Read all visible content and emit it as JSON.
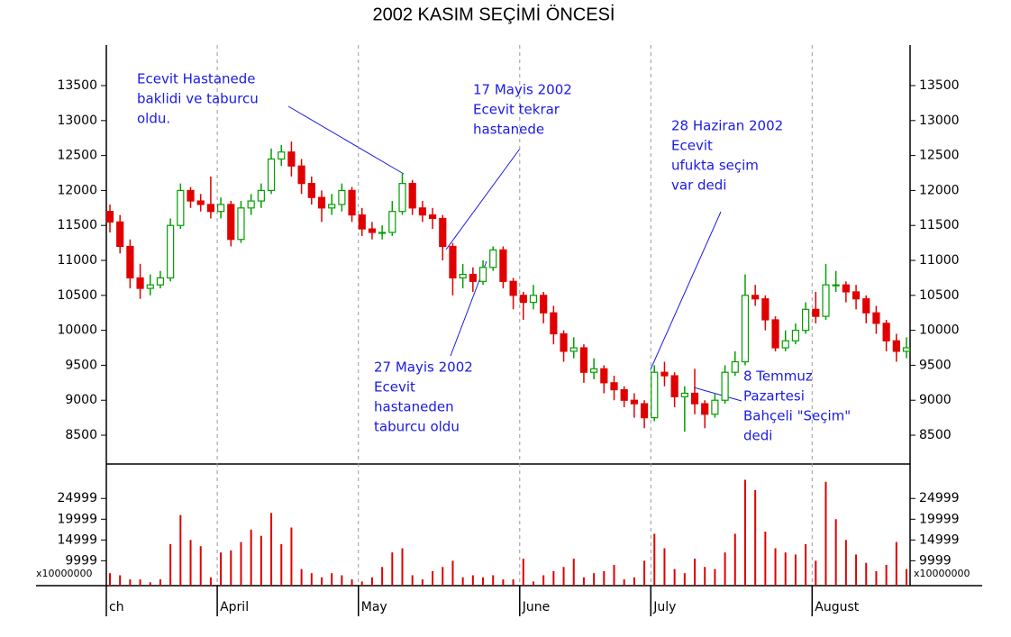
{
  "chart_data": {
    "type": "candlestick",
    "title": "2002 KASIM SEÇİMİ ÖNCESİ",
    "categories": [
      "ch",
      null,
      null,
      null,
      null,
      null,
      null,
      null,
      null,
      null,
      null,
      "April",
      null,
      null,
      null,
      null,
      null,
      null,
      null,
      null,
      null,
      null,
      null,
      null,
      null,
      "May",
      null,
      null,
      null,
      null,
      null,
      null,
      null,
      null,
      null,
      null,
      null,
      null,
      null,
      null,
      null,
      "June",
      null,
      null,
      null,
      null,
      null,
      null,
      null,
      null,
      null,
      null,
      null,
      null,
      "July",
      null,
      null,
      null,
      null,
      null,
      null,
      null,
      null,
      null,
      null,
      null,
      null,
      null,
      null,
      null,
      "August",
      null,
      null,
      null,
      null,
      null,
      null,
      null,
      null,
      null
    ],
    "open": [
      11700,
      11550,
      11200,
      10750,
      10600,
      10650,
      10750,
      11500,
      12000,
      11850,
      11800,
      11700,
      11800,
      11300,
      11750,
      11850,
      12000,
      12450,
      12550,
      12350,
      12100,
      11900,
      11750,
      11800,
      12000,
      11650,
      11450,
      11400,
      11400,
      11700,
      12100,
      11750,
      11650,
      11600,
      11200,
      10750,
      10800,
      10700,
      10900,
      11150,
      10700,
      10500,
      10400,
      10500,
      10250,
      9950,
      9700,
      9750,
      9400,
      9450,
      9250,
      9150,
      9000,
      8950,
      8750,
      9400,
      9350,
      9050,
      9100,
      8950,
      8800,
      9000,
      9400,
      9550,
      10500,
      10450,
      10150,
      9750,
      9850,
      10000,
      10300,
      10200,
      10650,
      10650,
      10550,
      10450,
      10250,
      10100,
      9850,
      9700
    ],
    "high": [
      11800,
      11650,
      11300,
      10950,
      10800,
      10850,
      11600,
      12100,
      12050,
      11950,
      12200,
      11900,
      11850,
      11850,
      11950,
      12100,
      12600,
      12650,
      12700,
      12450,
      12200,
      12000,
      11950,
      12100,
      12050,
      11750,
      11550,
      11500,
      11850,
      12250,
      12150,
      11850,
      11750,
      11650,
      11250,
      10950,
      10900,
      11000,
      11200,
      11200,
      10750,
      10550,
      10650,
      10550,
      10350,
      10000,
      9900,
      9800,
      9600,
      9500,
      9350,
      9200,
      9100,
      9000,
      9500,
      9550,
      9400,
      9200,
      9450,
      9000,
      9100,
      9500,
      9700,
      10800,
      10650,
      10500,
      10200,
      10000,
      10100,
      10400,
      10550,
      10950,
      10850,
      10700,
      10650,
      10500,
      10350,
      10150,
      9950,
      9900
    ],
    "low": [
      11400,
      11100,
      10600,
      10450,
      10500,
      10600,
      10700,
      11450,
      11750,
      11700,
      11600,
      11600,
      11200,
      11250,
      11650,
      11750,
      11950,
      12350,
      12200,
      11950,
      11800,
      11550,
      11650,
      11700,
      11550,
      11350,
      11300,
      11300,
      11350,
      11650,
      11650,
      11550,
      11450,
      11000,
      10500,
      10600,
      10550,
      10650,
      10850,
      10600,
      10300,
      10150,
      10300,
      10100,
      9800,
      9550,
      9600,
      9250,
      9300,
      9100,
      9000,
      8900,
      8750,
      8600,
      8700,
      9200,
      8900,
      8550,
      8800,
      8600,
      8750,
      8950,
      9350,
      9500,
      10350,
      10000,
      9700,
      9700,
      9800,
      9950,
      10100,
      10150,
      10550,
      10400,
      10300,
      10100,
      9950,
      9700,
      9550,
      9600
    ],
    "close": [
      11550,
      11200,
      10750,
      10600,
      10650,
      10750,
      11500,
      12000,
      11850,
      11800,
      11700,
      11800,
      11300,
      11750,
      11850,
      12000,
      12450,
      12550,
      12350,
      12100,
      11900,
      11750,
      11800,
      12000,
      11650,
      11450,
      11400,
      11400,
      11700,
      12100,
      11750,
      11650,
      11600,
      11200,
      10750,
      10800,
      10700,
      10900,
      11150,
      10700,
      10500,
      10400,
      10500,
      10250,
      9950,
      9700,
      9750,
      9400,
      9450,
      9250,
      9150,
      9000,
      8950,
      8750,
      9400,
      9350,
      9050,
      9100,
      8950,
      8800,
      9000,
      9400,
      9550,
      10500,
      10450,
      10150,
      9750,
      9850,
      10000,
      10300,
      10200,
      10650,
      10650,
      10550,
      10450,
      10250,
      10100,
      9850,
      9700,
      9750
    ],
    "up_color": "#00a000",
    "down_color": "#e00000",
    "ylim": [
      8088,
      14080
    ],
    "yticks": [
      8500,
      9000,
      9500,
      10000,
      10500,
      11000,
      11500,
      12000,
      12500,
      13000,
      13500
    ],
    "volume": [
      7000,
      6500,
      5500,
      5500,
      4800,
      5500,
      14000,
      21000,
      15000,
      13500,
      6000,
      12000,
      12500,
      14500,
      17500,
      16000,
      21500,
      14000,
      18000,
      8000,
      7000,
      6000,
      7000,
      6500,
      5500,
      5000,
      6000,
      8500,
      12000,
      13000,
      6500,
      5500,
      7500,
      8500,
      10000,
      6000,
      6500,
      6000,
      6500,
      5500,
      5500,
      10500,
      5000,
      6500,
      7500,
      8500,
      10500,
      6000,
      7000,
      7500,
      9000,
      5500,
      6000,
      10000,
      16500,
      13000,
      8000,
      7000,
      10500,
      8500,
      8000,
      12000,
      16500,
      29500,
      27000,
      17000,
      13000,
      12000,
      11500,
      14000,
      10000,
      29000,
      20000,
      15000,
      11500,
      9500,
      7500,
      9000,
      14500,
      8000
    ],
    "volume_color": "#e00000",
    "volume_unit": "x10000000",
    "y2lim": [
      4000,
      33300
    ],
    "y2ticks": [
      9999,
      14999,
      19999,
      24999
    ],
    "annotations": [
      {
        "lines": [
          "Ecevit Hastanede",
          "baklidi ve taburcu",
          "oldu."
        ]
      },
      {
        "lines": [
          "17 Mayis 2002",
          "Ecevit tekrar",
          "hastanede"
        ]
      },
      {
        "lines": [
          "27 Mayis 2002",
          "Ecevit",
          "hastaneden",
          "taburcu oldu"
        ]
      },
      {
        "lines": [
          "28 Haziran 2002",
          "Ecevit",
          "ufukta seçim",
          "var dedi"
        ]
      },
      {
        "lines": [
          "8 Temmuz",
          "Pazartesi",
          "Bahçeli \"Seçim\"",
          "dedi"
        ]
      }
    ]
  }
}
